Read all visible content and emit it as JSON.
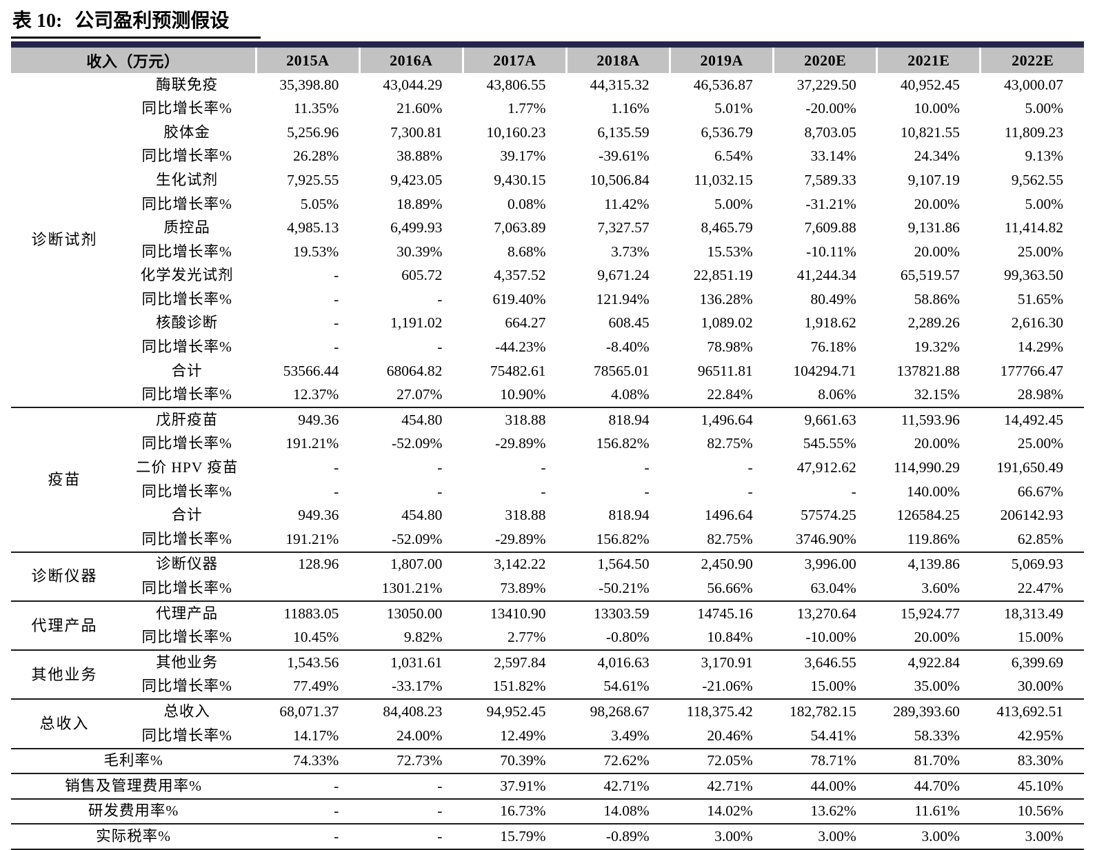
{
  "title": {
    "prefix": "表 10:",
    "text": "公司盈利预测假设"
  },
  "colors": {
    "header_bg": "#c2c2c2",
    "accent_bar": "#26264d",
    "separator": "#1a1a1a"
  },
  "chart_data": {
    "type": "table",
    "title": "表 10: 公司盈利预测假设",
    "unit_header": "收入（万元）",
    "columns": [
      "2015A",
      "2016A",
      "2017A",
      "2018A",
      "2019A",
      "2020E",
      "2021E",
      "2022E"
    ],
    "rows": [
      {
        "group": "诊断试剂",
        "group_span": 14,
        "label": "酶联免疫",
        "values": [
          "35,398.80",
          "43,044.29",
          "43,806.55",
          "44,315.32",
          "46,536.87",
          "37,229.50",
          "40,952.45",
          "43,000.07"
        ]
      },
      {
        "label": "同比增长率%",
        "values": [
          "11.35%",
          "21.60%",
          "1.77%",
          "1.16%",
          "5.01%",
          "-20.00%",
          "10.00%",
          "5.00%"
        ]
      },
      {
        "label": "胶体金",
        "values": [
          "5,256.96",
          "7,300.81",
          "10,160.23",
          "6,135.59",
          "6,536.79",
          "8,703.05",
          "10,821.55",
          "11,809.23"
        ]
      },
      {
        "label": "同比增长率%",
        "values": [
          "26.28%",
          "38.88%",
          "39.17%",
          "-39.61%",
          "6.54%",
          "33.14%",
          "24.34%",
          "9.13%"
        ]
      },
      {
        "label": "生化试剂",
        "values": [
          "7,925.55",
          "9,423.05",
          "9,430.15",
          "10,506.84",
          "11,032.15",
          "7,589.33",
          "9,107.19",
          "9,562.55"
        ]
      },
      {
        "label": "同比增长率%",
        "values": [
          "5.05%",
          "18.89%",
          "0.08%",
          "11.42%",
          "5.00%",
          "-31.21%",
          "20.00%",
          "5.00%"
        ]
      },
      {
        "label": "质控品",
        "values": [
          "4,985.13",
          "6,499.93",
          "7,063.89",
          "7,327.57",
          "8,465.79",
          "7,609.88",
          "9,131.86",
          "11,414.82"
        ]
      },
      {
        "label": "同比增长率%",
        "values": [
          "19.53%",
          "30.39%",
          "8.68%",
          "3.73%",
          "15.53%",
          "-10.11%",
          "20.00%",
          "25.00%"
        ]
      },
      {
        "label": "化学发光试剂",
        "values": [
          "-",
          "605.72",
          "4,357.52",
          "9,671.24",
          "22,851.19",
          "41,244.34",
          "65,519.57",
          "99,363.50"
        ]
      },
      {
        "label": "同比增长率%",
        "values": [
          "-",
          "-",
          "619.40%",
          "121.94%",
          "136.28%",
          "80.49%",
          "58.86%",
          "51.65%"
        ]
      },
      {
        "label": "核酸诊断",
        "values": [
          "-",
          "1,191.02",
          "664.27",
          "608.45",
          "1,089.02",
          "1,918.62",
          "2,289.26",
          "2,616.30"
        ]
      },
      {
        "label": "同比增长率%",
        "values": [
          "-",
          "-",
          "-44.23%",
          "-8.40%",
          "78.98%",
          "76.18%",
          "19.32%",
          "14.29%"
        ]
      },
      {
        "label": "合计",
        "values": [
          "53566.44",
          "68064.82",
          "75482.61",
          "78565.01",
          "96511.81",
          "104294.71",
          "137821.88",
          "177766.47"
        ]
      },
      {
        "label": "同比增长率%",
        "values": [
          "12.37%",
          "27.07%",
          "10.90%",
          "4.08%",
          "22.84%",
          "8.06%",
          "32.15%",
          "28.98%"
        ]
      },
      {
        "group": "疫苗",
        "group_span": 6,
        "sep": true,
        "label": "戊肝疫苗",
        "values": [
          "949.36",
          "454.80",
          "318.88",
          "818.94",
          "1,496.64",
          "9,661.63",
          "11,593.96",
          "14,492.45"
        ]
      },
      {
        "label": "同比增长率%",
        "values": [
          "191.21%",
          "-52.09%",
          "-29.89%",
          "156.82%",
          "82.75%",
          "545.55%",
          "20.00%",
          "25.00%"
        ]
      },
      {
        "label": "二价 HPV 疫苗",
        "values": [
          "-",
          "-",
          "-",
          "-",
          "-",
          "47,912.62",
          "114,990.29",
          "191,650.49"
        ]
      },
      {
        "label": "同比增长率%",
        "values": [
          "-",
          "-",
          "-",
          "-",
          "-",
          "-",
          "140.00%",
          "66.67%"
        ]
      },
      {
        "label": "合计",
        "values": [
          "949.36",
          "454.80",
          "318.88",
          "818.94",
          "1496.64",
          "57574.25",
          "126584.25",
          "206142.93"
        ]
      },
      {
        "label": "同比增长率%",
        "values": [
          "191.21%",
          "-52.09%",
          "-29.89%",
          "156.82%",
          "82.75%",
          "3746.90%",
          "119.86%",
          "62.85%"
        ]
      },
      {
        "group": "诊断仪器",
        "group_span": 2,
        "sep": true,
        "label": "诊断仪器",
        "values": [
          "128.96",
          "1,807.00",
          "3,142.22",
          "1,564.50",
          "2,450.90",
          "3,996.00",
          "4,139.86",
          "5,069.93"
        ]
      },
      {
        "label": "同比增长率%",
        "values": [
          "",
          "1301.21%",
          "73.89%",
          "-50.21%",
          "56.66%",
          "63.04%",
          "3.60%",
          "22.47%"
        ]
      },
      {
        "group": "代理产品",
        "group_span": 2,
        "sep": true,
        "label": "代理产品",
        "values": [
          "11883.05",
          "13050.00",
          "13410.90",
          "13303.59",
          "14745.16",
          "13,270.64",
          "15,924.77",
          "18,313.49"
        ]
      },
      {
        "label": "同比增长率%",
        "values": [
          "10.45%",
          "9.82%",
          "2.77%",
          "-0.80%",
          "10.84%",
          "-10.00%",
          "20.00%",
          "15.00%"
        ]
      },
      {
        "group": "其他业务",
        "group_span": 2,
        "sep": true,
        "label": "其他业务",
        "values": [
          "1,543.56",
          "1,031.61",
          "2,597.84",
          "4,016.63",
          "3,170.91",
          "3,646.55",
          "4,922.84",
          "6,399.69"
        ]
      },
      {
        "label": "同比增长率%",
        "values": [
          "77.49%",
          "-33.17%",
          "151.82%",
          "54.61%",
          "-21.06%",
          "15.00%",
          "35.00%",
          "30.00%"
        ]
      },
      {
        "group": "总收入",
        "group_span": 2,
        "sep": true,
        "label": "总收入",
        "values": [
          "68,071.37",
          "84,408.23",
          "94,952.45",
          "98,268.67",
          "118,375.42",
          "182,782.15",
          "289,393.60",
          "413,692.51"
        ]
      },
      {
        "label": "同比增长率%",
        "values": [
          "14.17%",
          "24.00%",
          "12.49%",
          "3.49%",
          "20.46%",
          "54.41%",
          "58.33%",
          "42.95%"
        ]
      },
      {
        "merged": true,
        "sep": true,
        "label": "毛利率%",
        "values": [
          "74.33%",
          "72.73%",
          "70.39%",
          "72.62%",
          "72.05%",
          "78.71%",
          "81.70%",
          "83.30%"
        ]
      },
      {
        "merged": true,
        "sep": true,
        "label": "销售及管理费用率%",
        "values": [
          "-",
          "-",
          "37.91%",
          "42.71%",
          "42.71%",
          "44.00%",
          "44.70%",
          "45.10%"
        ]
      },
      {
        "merged": true,
        "sep": true,
        "label": "研发费用率%",
        "values": [
          "-",
          "-",
          "16.73%",
          "14.08%",
          "14.02%",
          "13.62%",
          "11.61%",
          "10.56%"
        ]
      },
      {
        "merged": true,
        "sep": true,
        "label": "实际税率%",
        "values": [
          "-",
          "-",
          "15.79%",
          "-0.89%",
          "3.00%",
          "3.00%",
          "3.00%",
          "3.00%"
        ]
      }
    ]
  }
}
